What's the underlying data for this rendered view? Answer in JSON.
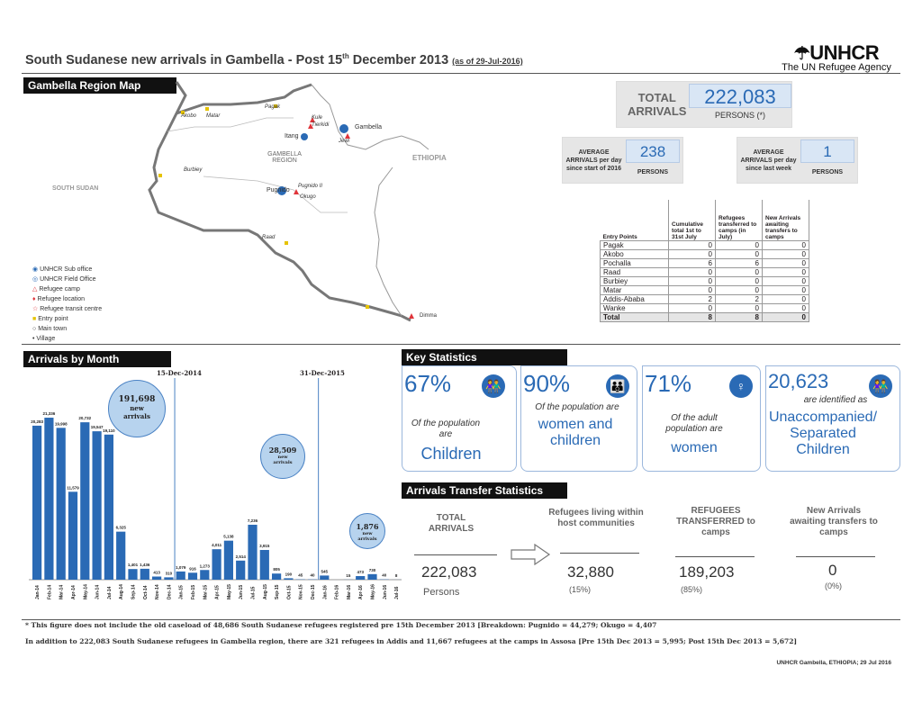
{
  "header": {
    "title": "South Sudanese new arrivals in Gambella - Post 15",
    "title_sup": "th",
    "title_rest": " December 2013",
    "as_of": "(as of 29-Jul-2016)",
    "org": "UNHCR",
    "org_sub": "The UN Refugee Agency"
  },
  "map": {
    "heading": "Gambella Region Map",
    "country_left": "SOUTH SUDAN",
    "country_right": "ETHIOPIA",
    "region": "GAMBELLA REGION",
    "places": [
      {
        "name": "Gambella"
      },
      {
        "name": "Itang"
      },
      {
        "name": "Pugnido"
      },
      {
        "name": "Pagak"
      },
      {
        "name": "Akobo"
      },
      {
        "name": "Burbiey"
      },
      {
        "name": "Matar"
      },
      {
        "name": "Dimma"
      },
      {
        "name": "Jewi"
      },
      {
        "name": "Kule"
      },
      {
        "name": "Tierkidi"
      },
      {
        "name": "Pugnido II"
      },
      {
        "name": "Okugo"
      },
      {
        "name": "Raad"
      }
    ],
    "legend": [
      "UNHCR Sub office",
      "UNHCR Field Office",
      "Refugee camp",
      "Refugee location",
      "Refugee transit centre",
      "Entry point",
      "Main town",
      "Village"
    ]
  },
  "totals": {
    "label1": "TOTAL",
    "label2": "ARRIVALS",
    "value": "222,083",
    "unit": "PERSONS (*)",
    "avg_start_label": "AVERAGE ARRIVALS per day since start of 2016",
    "avg_start_value": "238",
    "avg_start_unit": "PERSONS",
    "avg_week_label": "AVERAGE ARRIVALS per day since last week",
    "avg_week_value": "1",
    "avg_week_unit": "PERSONS"
  },
  "entry_table": {
    "headers": [
      "Entry Points",
      "Cumulative total 1st to 31st July",
      "Refugees transferred to camps (in July)",
      "New Arrivals awaiting transfers to camps"
    ],
    "rows": [
      [
        "Pagak",
        "0",
        "0",
        "0"
      ],
      [
        "Akobo",
        "0",
        "0",
        "0"
      ],
      [
        "Pochalla",
        "6",
        "6",
        "0"
      ],
      [
        "Raad",
        "0",
        "0",
        "0"
      ],
      [
        "Burbiey",
        "0",
        "0",
        "0"
      ],
      [
        "Matar",
        "0",
        "0",
        "0"
      ],
      [
        "Addis-Ababa",
        "2",
        "2",
        "0"
      ],
      [
        "Wanke",
        "0",
        "0",
        "0"
      ]
    ],
    "total": [
      "Total",
      "8",
      "8",
      "0"
    ]
  },
  "arrivals": {
    "heading": "Arrivals by Month",
    "marker1": "15-Dec-2014",
    "marker2": "31-Dec-2015",
    "bubble1_value": "191,698",
    "bubble1_text": "new arrivals",
    "bubble2_value": "28,509",
    "bubble2_text": "new arrivals",
    "bubble3_value": "1,876",
    "bubble3_text": "new arrivals"
  },
  "chart_data": {
    "type": "bar",
    "title": "Arrivals by Month",
    "xlabel": "",
    "ylabel": "",
    "categories": [
      "Jan-14",
      "Feb-14",
      "Mar-14",
      "Apr-14",
      "May-14",
      "Jun-14",
      "Jul-14",
      "Aug-14",
      "Sep-14",
      "Oct-14",
      "Nov-14",
      "Dec-14",
      "Jan-15",
      "Feb-15",
      "Mar-15",
      "Apr-15",
      "May-15",
      "Jun-15",
      "Jul-15",
      "Aug-15",
      "Sep-15",
      "Oct-15",
      "Nov-15",
      "Dec-15",
      "Jan-16",
      "Feb-16",
      "Mar-16",
      "Apr-16",
      "May-16",
      "Jun-16",
      "Jul-16"
    ],
    "values": [
      20283,
      21336,
      19998,
      11579,
      20732,
      19547,
      19110,
      6325,
      1401,
      1436,
      413,
      310,
      1079,
      916,
      1273,
      4011,
      5138,
      2514,
      7236,
      3915,
      805,
      190,
      45,
      40,
      545,
      0,
      15,
      473,
      730,
      40,
      8
    ],
    "labels": [
      "20,283",
      "21,336",
      "19,998",
      "11,579",
      "20,732",
      "19,547",
      "19,110",
      "6,325",
      "1,401",
      "1,436",
      "413",
      "310",
      "1,079",
      "916",
      "1,273",
      "4,011",
      "5,138",
      "2,514",
      "7,236",
      "3,915",
      "805",
      "190",
      "45",
      "40",
      "545",
      "",
      "15",
      "473",
      "730",
      "40",
      "8"
    ],
    "ylim": [
      0,
      23000
    ]
  },
  "key_stats": {
    "heading": "Key Statistics",
    "cards": [
      {
        "pct": "67%",
        "t1": "Of the population are",
        "t2": "Children",
        "icon": "children-icon"
      },
      {
        "pct": "90%",
        "t1": "Of the population are",
        "t2": "women and children",
        "icon": "family-icon"
      },
      {
        "pct": "71%",
        "t1": "Of the adult population are",
        "t2": "women",
        "icon": "woman-icon"
      },
      {
        "pct": "20,623",
        "t1": "are identified as",
        "t2": "Unaccompanied/ Separated Children",
        "icon": "children-icon"
      }
    ]
  },
  "transfer": {
    "heading": "Arrivals Transfer Statistics",
    "total_label": "TOTAL ARRIVALS",
    "total_value": "222,083",
    "total_unit": "Persons",
    "host_label": "Refugees living within host communities",
    "host_value": "32,880",
    "host_pct": "(15%)",
    "transferred_label": "REFUGEES TRANSFERRED to camps",
    "transferred_value": "189,203",
    "transferred_pct": "(85%)",
    "awaiting_label": "New Arrivals awaiting transfers to camps",
    "awaiting_value": "0",
    "awaiting_pct": "(0%)"
  },
  "footer": {
    "note1": "*  This figure does not include the old caseload of 48,686 South Sudanese refugees registered pre 15th December 2013 [Breakdown: Pugnido = 44,279; Okugo = 4,407",
    "note2": "In addition to 222,083 South Sudanese refugees in Gambella region, there are 321 refugees in Addis and 11,667 refugees at the camps in Assosa [Pre 15th Dec 2013 = 5,995;  Post 15th Dec 2013 = 5,672]",
    "source": "UNHCR Gambella, ETHIOPIA; 29 Jul 2016"
  }
}
